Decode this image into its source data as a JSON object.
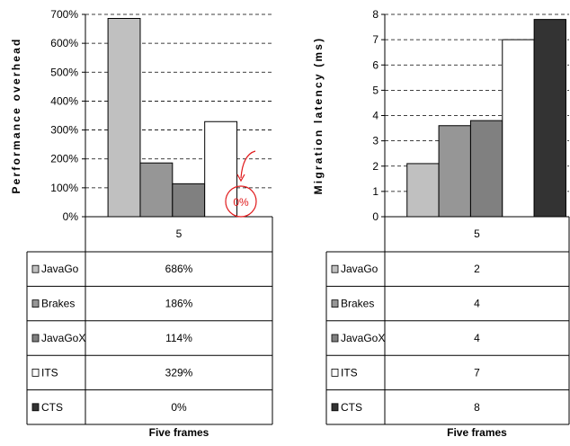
{
  "colors": {
    "JavaGo": "#c0c0c0",
    "Brakes": "#969696",
    "JavaGoX": "#808080",
    "ITS": "#ffffff",
    "CTS": "#333333",
    "annotation": "#e0191b"
  },
  "chart_data": [
    {
      "type": "bar",
      "ylabel": "Performance overhead",
      "xlabel": "Five frames",
      "categories": [
        "5"
      ],
      "ylim": [
        0,
        700
      ],
      "y_ticks": [
        "0%",
        "100%",
        "200%",
        "300%",
        "400%",
        "500%",
        "600%",
        "700%"
      ],
      "grid": true,
      "legend_placement": "data table below plot",
      "series": [
        {
          "name": "JavaGo",
          "values": [
            686
          ],
          "label": "686%"
        },
        {
          "name": "Brakes",
          "values": [
            186
          ],
          "label": "186%"
        },
        {
          "name": "JavaGoX",
          "values": [
            114
          ],
          "label": "114%"
        },
        {
          "name": "ITS",
          "values": [
            329
          ],
          "label": "329%"
        },
        {
          "name": "CTS",
          "values": [
            0
          ],
          "label": "0%"
        }
      ],
      "annotation": "0%"
    },
    {
      "type": "bar",
      "ylabel": "Migration latency (ms)",
      "xlabel": "Five frames",
      "categories": [
        "5"
      ],
      "ylim": [
        0,
        8
      ],
      "y_ticks": [
        "0",
        "1",
        "2",
        "3",
        "4",
        "5",
        "6",
        "7",
        "8"
      ],
      "grid": true,
      "legend_placement": "data table below plot",
      "series": [
        {
          "name": "JavaGo",
          "values": [
            2.1
          ],
          "label": "2"
        },
        {
          "name": "Brakes",
          "values": [
            3.6
          ],
          "label": "4"
        },
        {
          "name": "JavaGoX",
          "values": [
            3.8
          ],
          "label": "4"
        },
        {
          "name": "ITS",
          "values": [
            7.0
          ],
          "label": "7"
        },
        {
          "name": "CTS",
          "values": [
            7.8
          ],
          "label": "8"
        }
      ]
    }
  ]
}
